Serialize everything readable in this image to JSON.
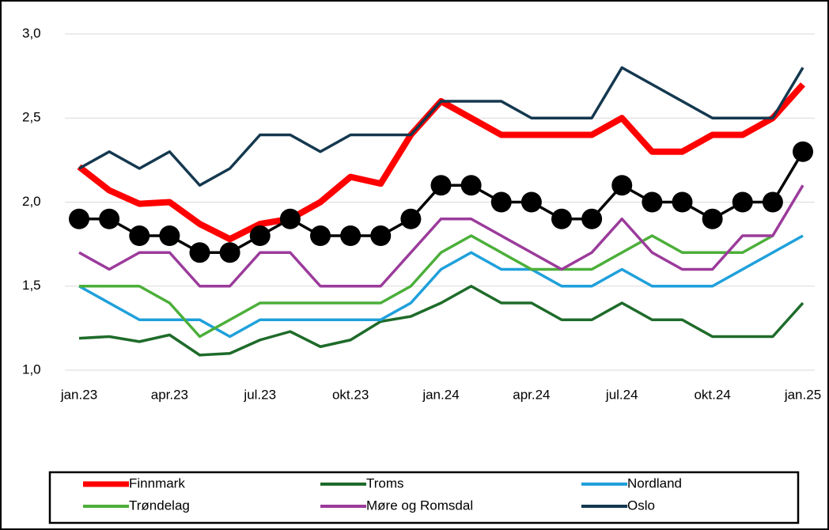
{
  "chart_data": {
    "type": "line",
    "categories": [
      "jan.23",
      null,
      null,
      "apr.23",
      null,
      null,
      "jul.23",
      null,
      null,
      "okt.23",
      null,
      null,
      "jan.24",
      null,
      null,
      "apr.24",
      null,
      null,
      "jul.24",
      null,
      null,
      "okt.24",
      null,
      null,
      "jan.25"
    ],
    "ylim": [
      1,
      3
    ],
    "yticks": [
      {
        "value": 1,
        "label": "1,0"
      },
      {
        "value": 1.5,
        "label": "1,5"
      },
      {
        "value": 2,
        "label": "2,0"
      },
      {
        "value": 2.5,
        "label": "2,5"
      },
      {
        "value": 3,
        "label": "3,0"
      }
    ],
    "grid": true,
    "legend": "bottom",
    "series": [
      {
        "name": "Finnmark",
        "color": "#ff0000",
        "values": [
          2.21,
          2.07,
          1.99,
          2.0,
          1.87,
          1.78,
          1.87,
          1.9,
          2.0,
          2.15,
          2.11,
          2.4,
          2.6,
          2.5,
          2.4,
          2.4,
          2.4,
          2.4,
          2.5,
          2.3,
          2.3,
          2.4,
          2.4,
          2.5,
          2.7
        ]
      },
      {
        "name": "Troms",
        "color": "#1e6b2a",
        "values": [
          1.19,
          1.2,
          1.17,
          1.21,
          1.09,
          1.1,
          1.18,
          1.23,
          1.14,
          1.18,
          1.29,
          1.32,
          1.4,
          1.5,
          1.4,
          1.4,
          1.3,
          1.3,
          1.4,
          1.3,
          1.3,
          1.2,
          1.2,
          1.2,
          1.4
        ]
      },
      {
        "name": "Nordland",
        "color": "#1fa0db",
        "values": [
          1.5,
          1.4,
          1.3,
          1.3,
          1.3,
          1.2,
          1.3,
          1.3,
          1.3,
          1.3,
          1.3,
          1.4,
          1.6,
          1.7,
          1.6,
          1.6,
          1.5,
          1.5,
          1.6,
          1.5,
          1.5,
          1.5,
          1.6,
          1.7,
          1.8
        ]
      },
      {
        "name": "Trøndelag",
        "color": "#4caf3a",
        "values": [
          1.5,
          1.5,
          1.5,
          1.4,
          1.2,
          1.3,
          1.4,
          1.4,
          1.4,
          1.4,
          1.4,
          1.5,
          1.7,
          1.8,
          1.7,
          1.6,
          1.6,
          1.6,
          1.7,
          1.8,
          1.7,
          1.7,
          1.7,
          1.8,
          null
        ]
      },
      {
        "name": "Møre og Romsdal",
        "color": "#9b3b9b",
        "values": [
          1.7,
          1.6,
          1.7,
          1.7,
          1.5,
          1.5,
          1.7,
          1.7,
          1.5,
          1.5,
          1.5,
          1.7,
          1.9,
          1.9,
          1.8,
          1.7,
          1.6,
          1.7,
          1.9,
          1.7,
          1.6,
          1.6,
          1.8,
          1.8,
          2.1
        ]
      },
      {
        "name": "Oslo",
        "color": "#14384f",
        "values": [
          2.2,
          2.3,
          2.2,
          2.3,
          2.1,
          2.2,
          2.4,
          2.4,
          2.3,
          2.4,
          2.4,
          2.4,
          2.6,
          2.6,
          2.6,
          2.5,
          2.5,
          2.5,
          2.8,
          2.7,
          2.6,
          2.5,
          2.5,
          2.5,
          2.8
        ]
      },
      {
        "color": "#000000",
        "markers": true,
        "values": [
          1.9,
          1.9,
          1.8,
          1.8,
          1.7,
          1.7,
          1.8,
          1.9,
          1.8,
          1.8,
          1.8,
          1.9,
          2.1,
          2.1,
          2.0,
          2.0,
          1.9,
          1.9,
          2.1,
          2.0,
          2.0,
          1.9,
          2.0,
          2.0,
          2.3
        ]
      }
    ]
  }
}
